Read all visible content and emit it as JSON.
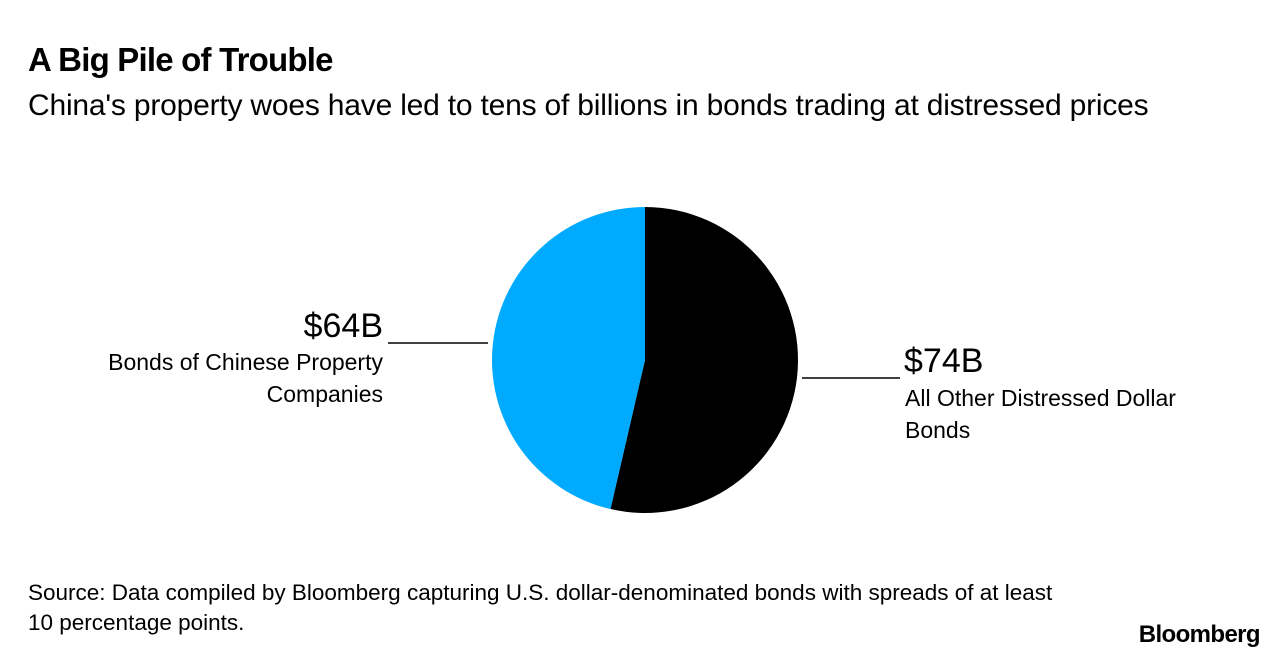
{
  "title": "A Big Pile of Trouble",
  "subtitle": "China's property woes have led to tens of billions in bonds trading at distressed prices",
  "source": "Source: Data compiled by Bloomberg capturing U.S. dollar-denominated bonds with spreads of at least 10 percentage points.",
  "brand": "Bloomberg",
  "colors": {
    "property": "#00aaff",
    "other": "#000000"
  },
  "chart_data": {
    "type": "pie",
    "unit": "billion USD",
    "slices": [
      {
        "label_line1": "All Other Distressed Dollar",
        "label_line2": "Bonds",
        "value": 74,
        "value_label": "$74B",
        "color": "#000000"
      },
      {
        "label_line1": "Bonds of Chinese Property",
        "label_line2": "Companies",
        "value": 64,
        "value_label": "$64B",
        "color": "#00aaff"
      }
    ]
  }
}
